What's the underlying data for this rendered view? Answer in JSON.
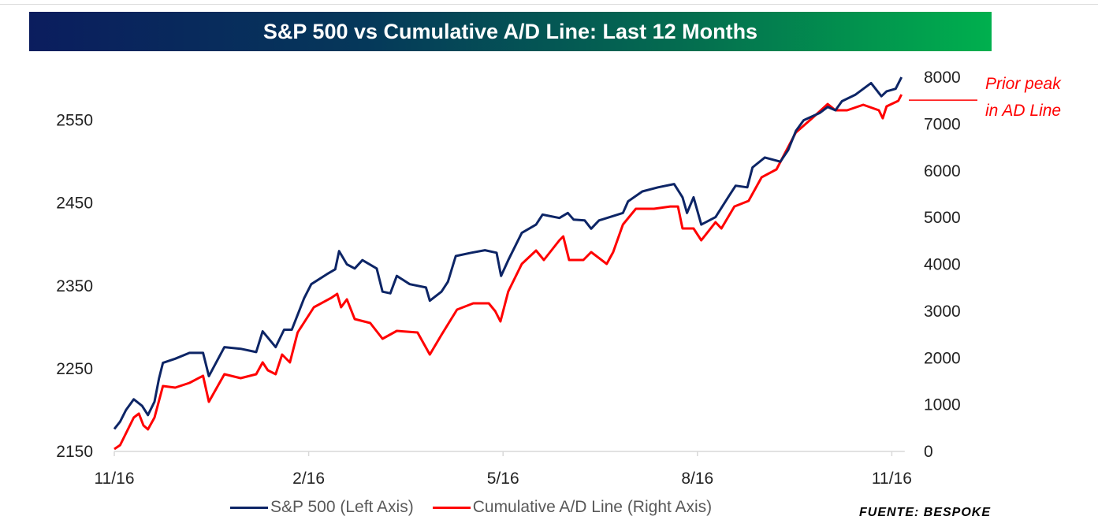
{
  "chart_data": {
    "type": "line",
    "title": "S&P 500 vs Cumulative A/D Line: Last 12 Months",
    "x_unit": "months since 11/16",
    "x_ticks": [
      {
        "value": 0,
        "label": "11/16"
      },
      {
        "value": 3,
        "label": "2/16"
      },
      {
        "value": 6,
        "label": "5/16"
      },
      {
        "value": 9,
        "label": "8/16"
      },
      {
        "value": 12,
        "label": "11/16"
      }
    ],
    "xlim": [
      0,
      12.2
    ],
    "left_axis": {
      "ylim": [
        2150,
        2602
      ],
      "ticks": [
        "2150",
        "2250",
        "2350",
        "2450",
        "2550"
      ],
      "tick_values": [
        2150,
        2250,
        2350,
        2450,
        2550
      ]
    },
    "right_axis": {
      "ylim": [
        0,
        8000
      ],
      "ticks": [
        "0",
        "1000",
        "2000",
        "3000",
        "4000",
        "5000",
        "6000",
        "7000",
        "8000"
      ],
      "tick_values": [
        0,
        1000,
        2000,
        3000,
        4000,
        5000,
        6000,
        7000,
        8000
      ]
    },
    "grid": false,
    "legend_position": "bottom",
    "series": [
      {
        "name": "S&P 500 (Left Axis)",
        "axis": "left",
        "color": "#0d2566",
        "x": [
          0,
          0.09,
          0.18,
          0.3,
          0.43,
          0.52,
          0.62,
          0.69,
          0.75,
          0.94,
          1.16,
          1.37,
          1.46,
          1.7,
          1.95,
          2.19,
          2.29,
          2.49,
          2.62,
          2.74,
          2.93,
          3.04,
          3.28,
          3.41,
          3.47,
          3.59,
          3.71,
          3.83,
          4.05,
          4.14,
          4.26,
          4.36,
          4.56,
          4.81,
          4.87,
          5.05,
          5.15,
          5.27,
          5.51,
          5.72,
          5.9,
          5.97,
          6.08,
          6.29,
          6.51,
          6.61,
          6.87,
          7.0,
          7.09,
          7.26,
          7.36,
          7.48,
          7.85,
          7.93,
          8.15,
          8.39,
          8.64,
          8.77,
          8.84,
          8.94,
          9.06,
          9.28,
          9.49,
          9.59,
          9.77,
          9.85,
          10.04,
          10.28,
          10.4,
          10.52,
          10.64,
          10.89,
          11.01,
          11.13,
          11.23,
          11.44,
          11.68,
          11.84,
          11.92,
          12.06,
          12.15
        ],
        "y": [
          2177,
          2186,
          2200,
          2213,
          2205,
          2194,
          2210,
          2238,
          2257,
          2262,
          2269,
          2269,
          2241,
          2276,
          2274,
          2270,
          2295,
          2276,
          2297,
          2297,
          2335,
          2352,
          2364,
          2370,
          2392,
          2376,
          2371,
          2381,
          2371,
          2343,
          2341,
          2362,
          2352,
          2348,
          2332,
          2343,
          2355,
          2386,
          2390,
          2393,
          2390,
          2362,
          2381,
          2414,
          2424,
          2436,
          2432,
          2438,
          2430,
          2429,
          2419,
          2429,
          2438,
          2452,
          2464,
          2469,
          2473,
          2457,
          2438,
          2457,
          2424,
          2433,
          2459,
          2471,
          2469,
          2493,
          2505,
          2500,
          2514,
          2537,
          2550,
          2559,
          2566,
          2562,
          2573,
          2581,
          2595,
          2579,
          2585,
          2588,
          2602
        ]
      },
      {
        "name": "Cumulative A/D Line (Right Axis)",
        "axis": "right",
        "color": "#ff0000",
        "x": [
          0,
          0.09,
          0.3,
          0.38,
          0.45,
          0.52,
          0.62,
          0.75,
          0.94,
          1.16,
          1.37,
          1.46,
          1.7,
          1.95,
          2.19,
          2.29,
          2.37,
          2.49,
          2.59,
          2.71,
          2.83,
          3.08,
          3.35,
          3.44,
          3.5,
          3.59,
          3.71,
          3.95,
          4.14,
          4.36,
          4.68,
          4.87,
          5.05,
          5.29,
          5.54,
          5.78,
          5.88,
          5.96,
          6.08,
          6.29,
          6.51,
          6.63,
          6.87,
          6.93,
          7.02,
          7.24,
          7.36,
          7.6,
          7.7,
          7.85,
          8.05,
          8.33,
          8.58,
          8.7,
          8.77,
          8.94,
          9.06,
          9.28,
          9.37,
          9.57,
          9.79,
          9.99,
          10.22,
          10.38,
          10.52,
          10.77,
          11.01,
          11.13,
          11.31,
          11.56,
          11.8,
          11.86,
          11.92,
          12.1,
          12.15
        ],
        "y": [
          51,
          135,
          724,
          808,
          556,
          472,
          724,
          1398,
          1364,
          1465,
          1617,
          1061,
          1650,
          1566,
          1650,
          1903,
          1735,
          1650,
          2071,
          1903,
          2543,
          3082,
          3284,
          3368,
          3082,
          3250,
          2829,
          2745,
          2408,
          2577,
          2543,
          2071,
          2492,
          3031,
          3166,
          3166,
          2998,
          2779,
          3419,
          4008,
          4294,
          4092,
          4513,
          4597,
          4092,
          4092,
          4261,
          4008,
          4261,
          4850,
          5187,
          5187,
          5237,
          5237,
          4766,
          4766,
          4513,
          4900,
          4766,
          5237,
          5355,
          5860,
          6029,
          6450,
          6820,
          7123,
          7426,
          7292,
          7292,
          7410,
          7292,
          7123,
          7376,
          7494,
          7629
        ]
      }
    ],
    "annotations": [
      {
        "text": "Prior peak in AD Line",
        "lines": [
          "Prior peak",
          "in AD Line"
        ],
        "axis": "right",
        "value": 7510,
        "color": "#ff0000"
      }
    ]
  },
  "source": "FUENTE: BESPOKE"
}
